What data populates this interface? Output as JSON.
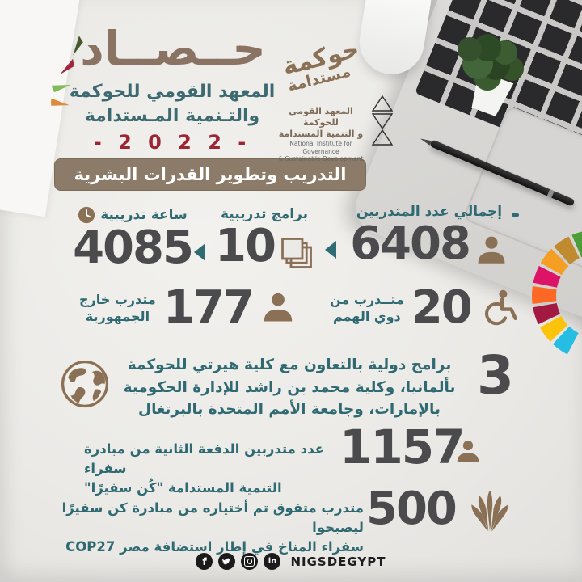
{
  "header": {
    "title": "حــصــاد",
    "subtitle_line1": "المعهد القومي للحوكمة",
    "subtitle_line2": "والتـنمية المـستدامة",
    "year_display": "- 2 0 2 2 -",
    "banner_label": "التدريب وتطوير القدرات البشرية"
  },
  "logo": {
    "calligraphy_word1": "حوكمة",
    "calligraphy_word2": "مستدامة",
    "org_ar_line1": "المعهد القومى للحوكمة",
    "org_ar_line2": "و التنمية المستدامة",
    "org_en_line1": "National Institute for Governance",
    "org_en_line2": "& Sustainable Development"
  },
  "stats": {
    "total_trainees": {
      "label": "إجمالي عدد المتدربين",
      "value": "6408",
      "icon": "person-icon"
    },
    "training_programs": {
      "label": "برامج تدريبية",
      "value": "10",
      "icon": "layers-icon"
    },
    "training_hours": {
      "label": "ساعة تدريبية",
      "value": "4085",
      "icon": "clock-icon"
    },
    "determined_trainees": {
      "label_line1": "متــدرب من",
      "label_line2": "ذوي الهمم",
      "value": "20",
      "icon": "wheelchair-icon"
    },
    "outside_republic": {
      "label_line1": "متدرب خارج",
      "label_line2": "الجمهورية",
      "value": "177",
      "icon": "person-icon"
    },
    "international_programs": {
      "value": "3",
      "label_line1": "برامج دولية بالتعاون مع كلية هيرتي للحوكمة",
      "label_line2": "بألمانيا، وكلية محمد بن راشد للإدارة الحكومية",
      "label_line3": "بالإمارات، وجامعة الأمم المتحدة بالبرتغال",
      "icon": "globe-icon"
    },
    "ambassadors_batch2": {
      "value": "1157",
      "label_line1": "عدد متدربين الدفعة الثانية من مبادرة سفراء",
      "label_line2": "التنمية المستدامة \"كُن سفيرًا\"",
      "icon": "person-icon"
    },
    "climate_ambassadors": {
      "value": "500",
      "label_line1": "متدرب متفوق تم أختياره من مبادرة كن سفيرًا ليصبحوا",
      "label_line2": "سفراء المناخ في إطار استضافة مصر COP27",
      "icon": "plant-icon"
    }
  },
  "footer": {
    "handle": "NIGSDEGYPT",
    "social": [
      "facebook",
      "twitter",
      "instagram",
      "linkedin"
    ],
    "facebook_glyph": "f",
    "linkedin_glyph": "in"
  },
  "colors": {
    "background": "#ebeae7",
    "title_brown": "#8b7364",
    "banner_brown": "#8b7b68",
    "teal": "#2f6a72",
    "number_gray": "#4b4b4d",
    "year_red": "#9d2433",
    "icon_brown": "#8a7054"
  },
  "sdg_wheel": {
    "colors": [
      "#4C9F38",
      "#BF8B2E",
      "#F59E24",
      "#DD1367",
      "#FD6925",
      "#A21942",
      "#FCC30B",
      "#26BDE2"
    ]
  }
}
